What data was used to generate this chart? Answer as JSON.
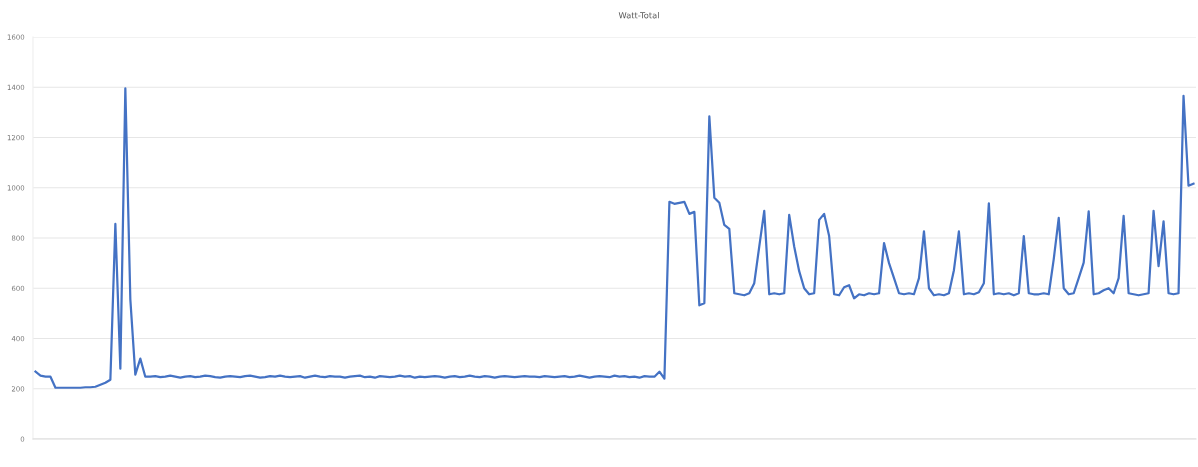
{
  "chart_data": {
    "type": "line",
    "title": "Watt-Total",
    "categories": [
      null,
      null,
      null,
      null,
      null,
      null,
      null,
      null,
      null,
      null,
      null,
      null,
      null,
      null,
      null,
      null,
      null,
      null,
      null,
      null,
      null,
      null,
      null,
      null,
      null,
      null,
      null,
      null,
      null,
      null,
      null,
      null,
      null,
      null,
      null,
      null,
      null,
      null,
      null,
      null,
      null,
      null,
      null,
      null,
      null,
      null,
      null,
      null,
      null,
      null,
      null,
      null,
      null,
      null,
      null,
      null,
      null,
      null,
      null,
      null,
      null,
      null,
      null,
      null,
      null,
      null,
      null,
      null,
      null,
      null,
      null,
      null,
      null,
      null,
      null,
      null,
      null,
      null,
      null,
      null,
      null,
      null,
      null,
      null,
      null,
      null,
      null,
      null,
      null,
      null,
      null,
      null,
      null,
      null,
      null,
      null,
      null,
      null,
      null,
      null,
      null,
      null,
      null,
      null,
      null,
      null,
      null,
      null,
      null,
      null,
      null,
      null,
      null,
      null,
      null,
      null,
      null,
      null,
      null,
      null,
      null,
      null,
      null,
      null,
      null,
      null,
      null,
      null,
      null,
      null,
      null,
      null,
      null,
      null,
      null,
      null,
      null,
      null,
      null,
      null,
      null,
      null,
      null,
      null,
      null,
      null,
      null,
      null,
      null,
      null,
      null,
      null,
      null,
      null,
      null,
      null,
      null,
      null,
      null,
      null,
      null,
      null,
      null,
      null,
      null,
      null,
      null,
      null,
      null,
      null,
      null,
      null,
      null,
      null,
      null,
      null,
      null,
      null,
      null,
      null,
      null,
      null,
      null,
      null,
      null,
      null,
      null,
      null,
      null,
      null,
      null,
      null,
      null,
      null,
      null,
      null,
      null,
      null,
      null,
      null,
      null,
      null,
      null,
      null,
      null,
      null,
      null,
      null,
      null,
      null,
      null,
      null,
      null,
      null,
      null,
      null,
      null,
      null,
      null,
      null,
      null,
      null,
      null,
      null,
      null,
      null,
      null,
      null,
      null,
      null,
      null,
      null,
      null
    ],
    "series": [
      {
        "color": "#4472c4",
        "values": [
          268,
          252,
          248,
          248,
          204,
          204,
          204,
          204,
          204,
          204,
          206,
          206,
          208,
          216,
          224,
          236,
          856,
          280,
          1396,
          556,
          256,
          320,
          248,
          248,
          250,
          246,
          248,
          252,
          248,
          244,
          248,
          250,
          246,
          248,
          252,
          250,
          246,
          244,
          248,
          250,
          248,
          246,
          250,
          252,
          248,
          244,
          246,
          250,
          248,
          252,
          248,
          246,
          248,
          250,
          244,
          248,
          252,
          248,
          246,
          250,
          248,
          248,
          244,
          248,
          250,
          252,
          246,
          248,
          244,
          250,
          248,
          246,
          248,
          252,
          248,
          250,
          244,
          248,
          246,
          248,
          250,
          248,
          244,
          248,
          250,
          246,
          248,
          252,
          248,
          246,
          250,
          248,
          244,
          248,
          250,
          248,
          246,
          248,
          250,
          248,
          248,
          246,
          250,
          248,
          246,
          248,
          250,
          246,
          248,
          252,
          248,
          244,
          248,
          250,
          248,
          246,
          252,
          248,
          250,
          246,
          248,
          244,
          250,
          248,
          248,
          268,
          240,
          944,
          936,
          940,
          944,
          896,
          904,
          532,
          540,
          1284,
          960,
          940,
          852,
          836,
          580,
          576,
          572,
          580,
          620,
          766,
          908,
          576,
          580,
          576,
          580,
          892,
          766,
          668,
          600,
          576,
          580,
          872,
          896,
          808,
          576,
          572,
          604,
          612,
          560,
          576,
          572,
          580,
          576,
          580,
          780,
          700,
          640,
          580,
          576,
          580,
          576,
          640,
          826,
          600,
          572,
          576,
          572,
          580,
          672,
          826,
          576,
          580,
          576,
          584,
          620,
          938,
          576,
          580,
          576,
          580,
          572,
          580,
          808,
          580,
          576,
          576,
          580,
          576,
          716,
          880,
          600,
          576,
          580,
          640,
          702,
          906,
          576,
          580,
          592,
          600,
          580,
          640,
          888,
          580,
          576,
          572,
          576,
          580,
          908,
          688,
          866,
          580,
          576,
          580,
          1366,
          1008,
          1016
        ]
      }
    ],
    "ylim": [
      0,
      1600
    ],
    "yticks": [
      0,
      200,
      400,
      600,
      800,
      1000,
      1200,
      1400,
      1600
    ],
    "grid": "y",
    "marker": "none",
    "line_style": "solid"
  }
}
